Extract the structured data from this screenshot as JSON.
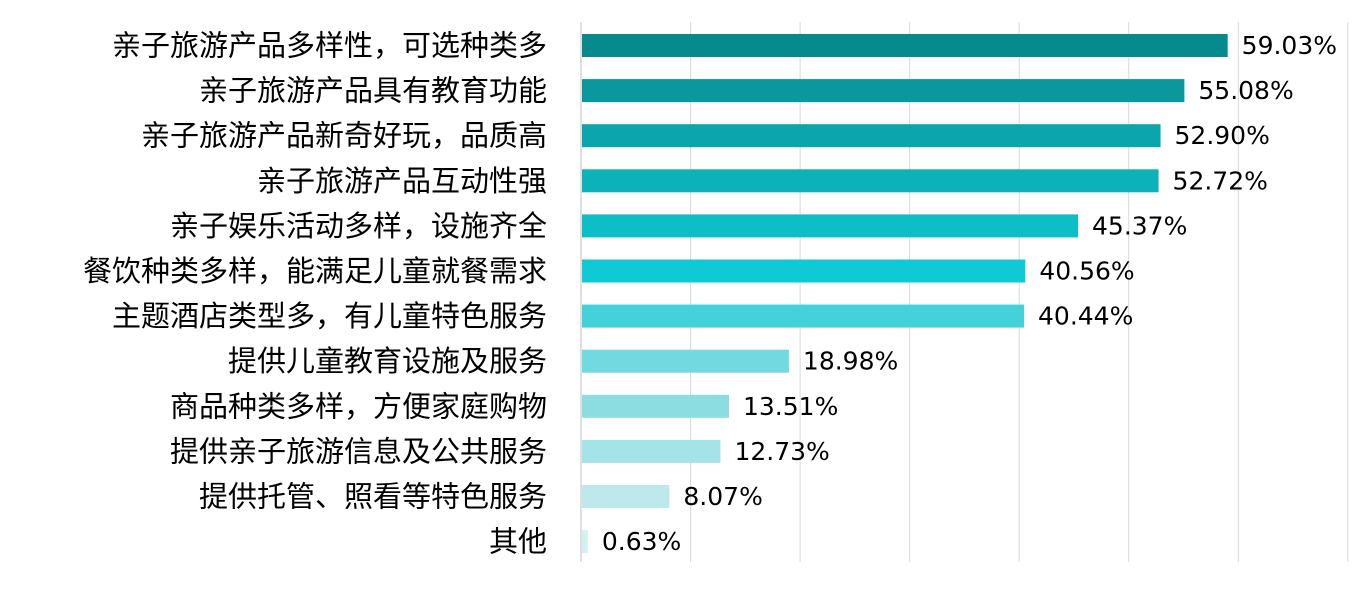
{
  "chart_data": {
    "type": "bar",
    "orientation": "horizontal",
    "title": "",
    "xlabel": "",
    "ylabel": "",
    "xlim": [
      0,
      70
    ],
    "grid": "vertical",
    "legend": "none",
    "value_format": "percent-2dp",
    "categories": [
      "亲子旅游产品多样性，可选种类多",
      "亲子旅游产品具有教育功能",
      "亲子旅游产品新奇好玩，品质高",
      "亲子旅游产品互动性强",
      "亲子娱乐活动多样，设施齐全",
      "餐饮种类多样，能满足儿童就餐需求",
      "主题酒店类型多，有儿童特色服务",
      "提供儿童教育设施及服务",
      "商品种类多样，方便家庭购物",
      "提供亲子旅游信息及公共服务",
      "提供托管、照看等特色服务",
      "其他"
    ],
    "values": [
      59.03,
      55.08,
      52.9,
      52.72,
      45.37,
      40.56,
      40.44,
      18.98,
      13.51,
      12.73,
      8.07,
      0.63
    ],
    "labels": [
      "59.03%",
      "55.08%",
      "52.90%",
      "52.72%",
      "45.37%",
      "40.56%",
      "40.44%",
      "18.98%",
      "13.51%",
      "12.73%",
      "8.07%",
      "0.63%"
    ],
    "colors": [
      "#078a8c",
      "#0a989c",
      "#0ba6ad",
      "#0cb2b9",
      "#0ebec6",
      "#0fcad4",
      "#43d2da",
      "#71d9df",
      "#8cdde2",
      "#a4e4e8",
      "#bde9ec",
      "#d2f1f3"
    ],
    "gridline_color": "#d9d9d9",
    "axis_line_color": "#bfbfbf"
  }
}
